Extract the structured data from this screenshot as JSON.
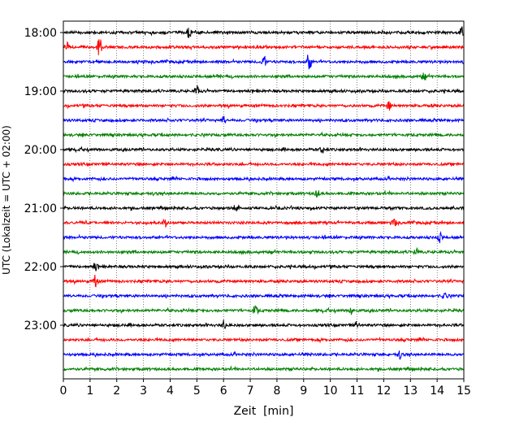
{
  "chart_data": {
    "type": "line",
    "subtype": "seismogram-helicorder",
    "xlabel": "Zeit  [min]",
    "ylabel": "UTC (Lokalzeit = UTC + 02:00)",
    "xlim": [
      0,
      15
    ],
    "x_ticks": [
      0,
      1,
      2,
      3,
      4,
      5,
      6,
      7,
      8,
      9,
      10,
      11,
      12,
      13,
      14,
      15
    ],
    "x_tick_labels": [
      "0",
      "1",
      "2",
      "3",
      "4",
      "5",
      "6",
      "7",
      "8",
      "9",
      "10",
      "11",
      "12",
      "13",
      "14",
      "15"
    ],
    "y_tick_labels": [
      "18:00",
      "19:00",
      "20:00",
      "21:00",
      "22:00",
      "23:00"
    ],
    "y_tick_rows": [
      0,
      4,
      8,
      12,
      16,
      20
    ],
    "minutes_per_row": 15,
    "grid_x": true,
    "grid_style": "dotted",
    "row_colors": [
      "#000000",
      "#ff0000",
      "#0000ff",
      "#008000"
    ],
    "rows": [
      {
        "start": "18:00",
        "color": "#000000",
        "events": [
          {
            "t": 4.7,
            "a": 0.5
          },
          {
            "t": 14.9,
            "a": 0.5
          }
        ]
      },
      {
        "start": "18:15",
        "color": "#ff0000",
        "events": [
          {
            "t": 1.35,
            "a": 0.85
          },
          {
            "t": 0.15,
            "a": 0.3
          }
        ]
      },
      {
        "start": "18:30",
        "color": "#0000ff",
        "events": [
          {
            "t": 7.5,
            "a": 0.6
          },
          {
            "t": 9.2,
            "a": 0.8
          }
        ]
      },
      {
        "start": "18:45",
        "color": "#008000",
        "events": [
          {
            "t": 13.5,
            "a": 0.3
          }
        ]
      },
      {
        "start": "19:00",
        "color": "#000000",
        "events": [
          {
            "t": 5.0,
            "a": 0.45
          }
        ]
      },
      {
        "start": "19:15",
        "color": "#ff0000",
        "events": [
          {
            "t": 12.2,
            "a": 0.35
          }
        ]
      },
      {
        "start": "19:30",
        "color": "#0000ff",
        "events": [
          {
            "t": 6.0,
            "a": 0.3
          }
        ]
      },
      {
        "start": "19:45",
        "color": "#008000",
        "events": []
      },
      {
        "start": "20:00",
        "color": "#000000",
        "events": [
          {
            "t": 9.7,
            "a": 0.35
          }
        ]
      },
      {
        "start": "20:15",
        "color": "#ff0000",
        "events": []
      },
      {
        "start": "20:30",
        "color": "#0000ff",
        "events": []
      },
      {
        "start": "20:45",
        "color": "#008000",
        "events": [
          {
            "t": 9.5,
            "a": 0.35
          }
        ]
      },
      {
        "start": "21:00",
        "color": "#000000",
        "events": [
          {
            "t": 6.5,
            "a": 0.3
          }
        ]
      },
      {
        "start": "21:15",
        "color": "#ff0000",
        "events": [
          {
            "t": 3.8,
            "a": 0.35
          },
          {
            "t": 12.4,
            "a": 0.3
          }
        ]
      },
      {
        "start": "21:30",
        "color": "#0000ff",
        "events": [
          {
            "t": 14.1,
            "a": 0.4
          }
        ]
      },
      {
        "start": "21:45",
        "color": "#008000",
        "events": [
          {
            "t": 13.2,
            "a": 0.3
          }
        ]
      },
      {
        "start": "22:00",
        "color": "#000000",
        "events": [
          {
            "t": 1.2,
            "a": 0.35
          }
        ]
      },
      {
        "start": "22:15",
        "color": "#ff0000",
        "events": [
          {
            "t": 1.2,
            "a": 0.55
          }
        ]
      },
      {
        "start": "22:30",
        "color": "#0000ff",
        "events": [
          {
            "t": 14.3,
            "a": 0.35
          }
        ]
      },
      {
        "start": "22:45",
        "color": "#008000",
        "events": [
          {
            "t": 7.2,
            "a": 0.45
          },
          {
            "t": 10.8,
            "a": 0.35
          }
        ]
      },
      {
        "start": "23:00",
        "color": "#000000",
        "events": [
          {
            "t": 6.0,
            "a": 0.35
          },
          {
            "t": 11.0,
            "a": 0.3
          }
        ]
      },
      {
        "start": "23:15",
        "color": "#ff0000",
        "events": []
      },
      {
        "start": "23:30",
        "color": "#0000ff",
        "events": [
          {
            "t": 12.6,
            "a": 0.3
          }
        ]
      },
      {
        "start": "23:45",
        "color": "#008000",
        "events": []
      }
    ]
  }
}
